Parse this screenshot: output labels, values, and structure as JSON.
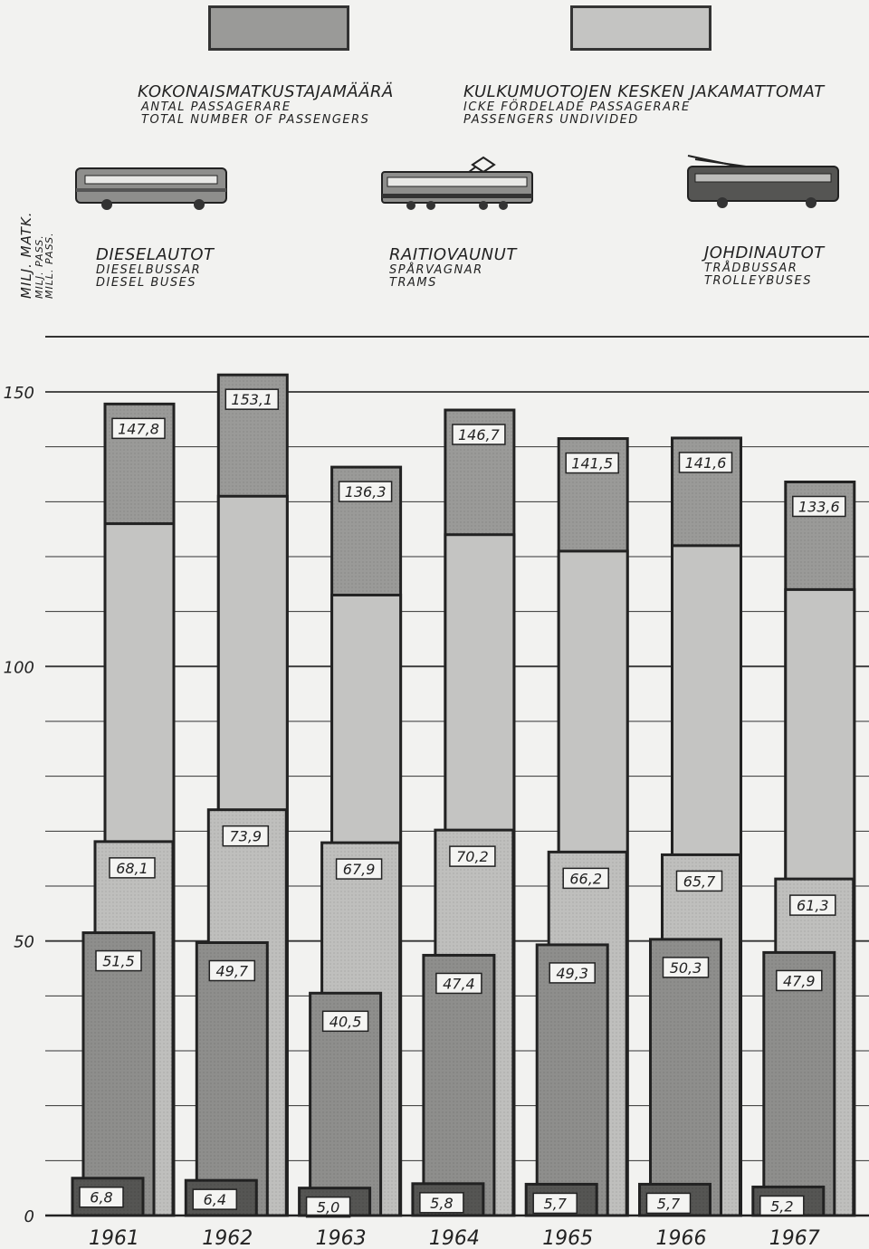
{
  "legend": {
    "total": {
      "fi": "KOKONAISMATKUSTAJAMÄÄRÄ",
      "sv": "ANTAL PASSAGERARE",
      "en": "TOTAL NUMBER OF PASSENGERS",
      "color": "#9a9a98"
    },
    "undivided": {
      "fi": "KULKUMUOTOJEN KESKEN JAKAMATTOMAT",
      "sv": "ICKE FÖRDELADE PASSAGERARE",
      "en": "PASSENGERS UNDIVIDED",
      "color": "#c4c4c2"
    },
    "modes": [
      {
        "fi": "DIESELAUTOT",
        "sv": "DIESELBUSSAR",
        "en": "DIESEL BUSES",
        "icon": "diesel-bus-icon",
        "color": "#bfbfbd"
      },
      {
        "fi": "RAITIOVAUNUT",
        "sv": "SPÅRVAGNAR",
        "en": "TRAMS",
        "icon": "tram-icon",
        "color": "#8e8e8c"
      },
      {
        "fi": "JOHDINAUTOT",
        "sv": "TRÅDBUSSAR",
        "en": "TROLLEYBUSES",
        "icon": "trolleybus-icon",
        "color": "#555553"
      }
    ]
  },
  "yaxis": {
    "label_fi": "MILJ. MATK.",
    "label_sv": "MILJ. PASS.",
    "label_en": "MILL. PASS."
  },
  "chart_data": {
    "type": "bar",
    "categories": [
      "1961",
      "1962",
      "1963",
      "1964",
      "1965",
      "1966",
      "1967"
    ],
    "ylim": [
      0,
      150
    ],
    "yticks": [
      0,
      50,
      100,
      150
    ],
    "ytick_labels": [
      "0",
      "50",
      "100",
      "150"
    ],
    "grid": true,
    "series": [
      {
        "name": "KOKONAISMATKUSTAJAMÄÄRÄ",
        "values": [
          147.8,
          153.1,
          136.3,
          146.7,
          141.5,
          141.6,
          133.6
        ],
        "labels": [
          "147,8",
          "153,1",
          "136,3",
          "146,7",
          "141,5",
          "141,6",
          "133,6"
        ]
      },
      {
        "name": "DIESELAUTOT",
        "values": [
          68.1,
          73.9,
          67.9,
          70.2,
          66.2,
          65.7,
          61.3
        ],
        "labels": [
          "68,1",
          "73,9",
          "67,9",
          "70,2",
          "66,2",
          "65,7",
          "61,3"
        ]
      },
      {
        "name": "RAITIOVAUNUT",
        "values": [
          51.5,
          49.7,
          40.5,
          47.4,
          49.3,
          50.3,
          47.9
        ],
        "labels": [
          "51,5",
          "49,7",
          "40,5",
          "47,4",
          "49,3",
          "50,3",
          "47,9"
        ]
      },
      {
        "name": "JOHDINAUTOT",
        "values": [
          6.8,
          6.4,
          5.0,
          5.8,
          5.7,
          5.7,
          5.2
        ],
        "labels": [
          "6,8",
          "6,4",
          "5,0",
          "5,8",
          "5,7",
          "5,7",
          "5,2"
        ]
      },
      {
        "name": "KULKUMUOTOJEN KESKEN JAKAMATTOMAT",
        "values": [
          126,
          131,
          113,
          124,
          121,
          122,
          114
        ]
      }
    ],
    "colors": {
      "total": "#9a9a98",
      "undivided": "#c4c4c2",
      "diesel": "#bfbfbd",
      "tram": "#8e8e8c",
      "trolley": "#555553",
      "grid": "#333333",
      "label_bg": "#f4f4f2"
    }
  }
}
